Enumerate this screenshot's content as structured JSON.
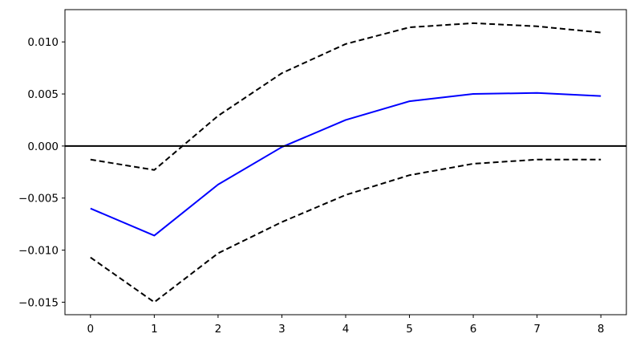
{
  "chart_data": {
    "type": "line",
    "title": "",
    "xlabel": "",
    "ylabel": "",
    "xlim": [
      -0.4,
      8.4
    ],
    "ylim": [
      -0.0162,
      0.0131
    ],
    "x": [
      0,
      1,
      2,
      3,
      4,
      5,
      6,
      7,
      8
    ],
    "xticks": [
      0,
      1,
      2,
      3,
      4,
      5,
      6,
      7,
      8
    ],
    "xtick_labels": [
      "0",
      "1",
      "2",
      "3",
      "4",
      "5",
      "6",
      "7",
      "8"
    ],
    "yticks": [
      0.01,
      0.005,
      0.0,
      -0.005,
      -0.01,
      -0.015
    ],
    "ytick_labels": [
      "0.010",
      "0.005",
      "0.000",
      "−0.005",
      "−0.010",
      "−0.015"
    ],
    "grid": false,
    "legend": "none",
    "reference_line": {
      "y": 0,
      "color": "#000000"
    },
    "series": [
      {
        "values": [
          -0.006,
          -0.0086,
          -0.0037,
          -0.0001,
          0.0025,
          0.0043,
          0.005,
          0.0051,
          0.0048
        ],
        "color": "#0000ff",
        "style": "solid"
      },
      {
        "values": [
          -0.0013,
          -0.0023,
          0.0029,
          0.007,
          0.0098,
          0.0114,
          0.0118,
          0.0115,
          0.0109
        ],
        "color": "#000000",
        "style": "dashed"
      },
      {
        "values": [
          -0.0107,
          -0.015,
          -0.0103,
          -0.0073,
          -0.0047,
          -0.0028,
          -0.0017,
          -0.0013,
          -0.0013
        ],
        "color": "#000000",
        "style": "dashed"
      }
    ]
  }
}
